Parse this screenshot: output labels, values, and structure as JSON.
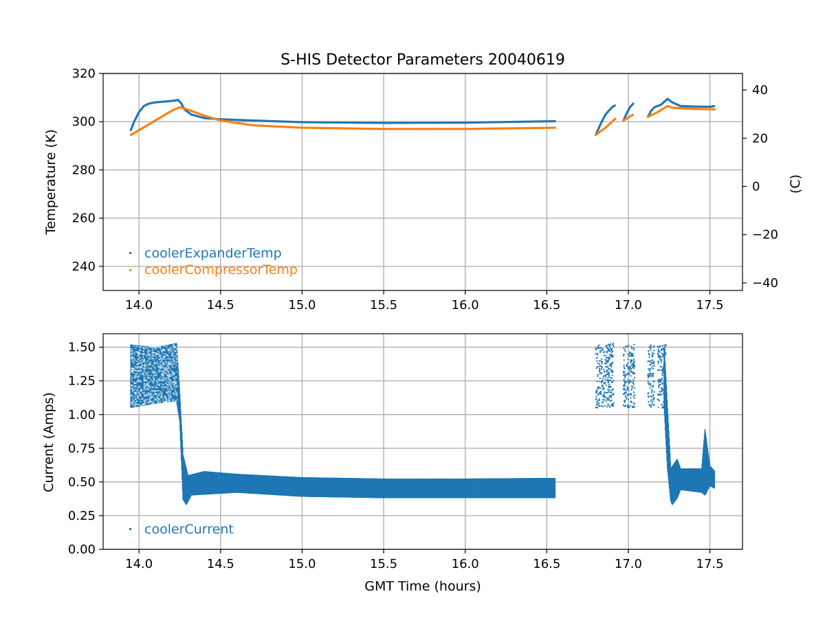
{
  "chart_data": [
    {
      "type": "scatter",
      "title": "S-HIS Detector Parameters 20040619",
      "xlabel": "",
      "ylabel": "Temperature (K)",
      "y2label": "(C)",
      "xlim": [
        13.78,
        17.7
      ],
      "ylim": [
        230,
        320
      ],
      "y2lim": [
        -43.15,
        46.85
      ],
      "xticks": [
        "14.0",
        "14.5",
        "15.0",
        "15.5",
        "16.0",
        "16.5",
        "17.0",
        "17.5"
      ],
      "yticks": [
        "240",
        "260",
        "280",
        "300",
        "320"
      ],
      "y2ticks": [
        "−40",
        "−20",
        "0",
        "20",
        "40"
      ],
      "grid": true,
      "legend_position": "lower-left",
      "series": [
        {
          "name": "coolerExpanderTemp",
          "color": "#1f77b4",
          "segments": [
            [
              [
                13.95,
                296.5
              ],
              [
                13.97,
                300
              ],
              [
                14.0,
                304
              ],
              [
                14.03,
                306.5
              ],
              [
                14.06,
                307.5
              ],
              [
                14.1,
                308
              ],
              [
                14.15,
                308.3
              ],
              [
                14.2,
                308.6
              ],
              [
                14.24,
                309
              ],
              [
                14.26,
                307.5
              ],
              [
                14.28,
                305
              ],
              [
                14.32,
                303
              ],
              [
                14.4,
                301.5
              ],
              [
                14.5,
                301
              ],
              [
                14.7,
                300.5
              ],
              [
                15.0,
                299.8
              ],
              [
                15.5,
                299.5
              ],
              [
                16.0,
                299.6
              ],
              [
                16.55,
                300.2
              ]
            ],
            [
              [
                16.8,
                294.5
              ],
              [
                16.83,
                299
              ],
              [
                16.86,
                303
              ],
              [
                16.9,
                306
              ],
              [
                16.92,
                306.8
              ]
            ],
            [
              [
                16.97,
                300.5
              ],
              [
                16.99,
                303.5
              ],
              [
                17.01,
                306
              ],
              [
                17.03,
                307.5
              ]
            ],
            [
              [
                17.12,
                302
              ],
              [
                17.14,
                304.5
              ],
              [
                17.16,
                306
              ],
              [
                17.2,
                307
              ],
              [
                17.24,
                309.5
              ],
              [
                17.27,
                308
              ],
              [
                17.32,
                306.5
              ],
              [
                17.4,
                306.3
              ],
              [
                17.5,
                306.2
              ],
              [
                17.53,
                306.5
              ]
            ]
          ]
        },
        {
          "name": "coolerCompressorTemp",
          "color": "#ff7f0e",
          "segments": [
            [
              [
                13.95,
                294.5
              ],
              [
                14.0,
                296.5
              ],
              [
                14.05,
                298.5
              ],
              [
                14.1,
                300.5
              ],
              [
                14.15,
                302.5
              ],
              [
                14.2,
                304.5
              ],
              [
                14.25,
                306
              ],
              [
                14.3,
                305
              ],
              [
                14.4,
                302.5
              ],
              [
                14.5,
                300.5
              ],
              [
                14.7,
                298.5
              ],
              [
                15.0,
                297.5
              ],
              [
                15.5,
                297
              ],
              [
                16.0,
                297
              ],
              [
                16.55,
                297.5
              ]
            ],
            [
              [
                16.8,
                294.5
              ],
              [
                16.86,
                297.5
              ],
              [
                16.92,
                301.2
              ]
            ],
            [
              [
                16.97,
                300.5
              ],
              [
                17.03,
                303
              ]
            ],
            [
              [
                17.12,
                302
              ],
              [
                17.18,
                304
              ],
              [
                17.24,
                306.5
              ],
              [
                17.27,
                305.8
              ],
              [
                17.4,
                305.3
              ],
              [
                17.53,
                305.1
              ]
            ]
          ]
        }
      ]
    },
    {
      "type": "scatter",
      "title": "",
      "xlabel": "GMT Time (hours)",
      "ylabel": "Current (Amps)",
      "xlim": [
        13.78,
        17.7
      ],
      "ylim": [
        0,
        1.6
      ],
      "xticks": [
        "14.0",
        "14.5",
        "15.0",
        "15.5",
        "16.0",
        "16.5",
        "17.0",
        "17.5"
      ],
      "yticks": [
        "0.00",
        "0.25",
        "0.50",
        "0.75",
        "1.00",
        "1.25",
        "1.50"
      ],
      "grid": true,
      "legend_position": "lower-left",
      "series": [
        {
          "name": "coolerCurrent",
          "color": "#1f77b4",
          "upper": [
            [
              13.95,
              1.52
            ],
            [
              14.1,
              1.5
            ],
            [
              14.23,
              1.53
            ],
            [
              14.25,
              1.15
            ],
            [
              14.27,
              0.7
            ],
            [
              14.3,
              0.55
            ],
            [
              14.4,
              0.58
            ],
            [
              14.6,
              0.56
            ],
            [
              15.0,
              0.535
            ],
            [
              15.5,
              0.525
            ],
            [
              16.0,
              0.525
            ],
            [
              16.55,
              0.53
            ]
          ],
          "lower": [
            [
              13.95,
              1.05
            ],
            [
              14.1,
              1.08
            ],
            [
              14.23,
              1.1
            ],
            [
              14.25,
              0.95
            ],
            [
              14.27,
              0.37
            ],
            [
              14.29,
              0.33
            ],
            [
              14.32,
              0.4
            ],
            [
              14.6,
              0.42
            ],
            [
              15.0,
              0.39
            ],
            [
              15.5,
              0.38
            ],
            [
              16.0,
              0.38
            ],
            [
              16.55,
              0.38
            ]
          ],
          "upper2": [
            [
              17.22,
              1.5
            ],
            [
              17.24,
              1.05
            ],
            [
              17.26,
              0.6
            ],
            [
              17.3,
              0.67
            ],
            [
              17.32,
              0.6
            ],
            [
              17.45,
              0.6
            ],
            [
              17.47,
              0.89
            ],
            [
              17.5,
              0.62
            ],
            [
              17.53,
              0.58
            ]
          ],
          "lower2": [
            [
              17.22,
              1.05
            ],
            [
              17.24,
              0.6
            ],
            [
              17.26,
              0.36
            ],
            [
              17.27,
              0.33
            ],
            [
              17.3,
              0.38
            ],
            [
              17.32,
              0.44
            ],
            [
              17.45,
              0.42
            ],
            [
              17.47,
              0.4
            ],
            [
              17.5,
              0.47
            ],
            [
              17.53,
              0.45
            ]
          ],
          "bursts": [
            [
              16.8,
              16.91,
              1.05,
              1.53
            ],
            [
              16.97,
              17.04,
              1.05,
              1.52
            ],
            [
              17.12,
              17.16,
              1.05,
              1.52
            ],
            [
              17.18,
              17.23,
              1.05,
              1.52
            ]
          ]
        }
      ]
    }
  ]
}
